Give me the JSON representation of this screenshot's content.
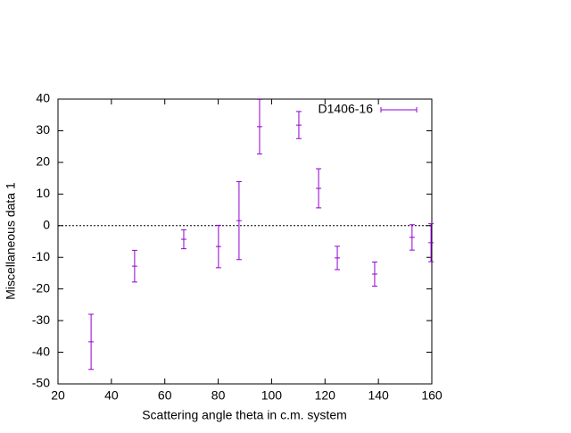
{
  "chart_data": {
    "type": "errorbar",
    "xlabel": "Scattering angle theta in c.m. system",
    "ylabel": "Miscellaneous data 1",
    "x": [
      32.4,
      48.7,
      67.1,
      80.1,
      87.8,
      95.5,
      110.2,
      117.6,
      124.6,
      138.6,
      152.6,
      159.7
    ],
    "series": [
      {
        "name": "D1406-16",
        "color": "#9400d3",
        "values": [
          -36.7,
          -12.8,
          -4.3,
          -6.6,
          1.6,
          31.3,
          31.8,
          11.8,
          -10.2,
          -15.3,
          -3.7,
          -5.4
        ],
        "errors": [
          8.7,
          5.0,
          3.0,
          6.7,
          12.3,
          8.6,
          4.3,
          6.2,
          3.7,
          3.8,
          4.0,
          6.0
        ]
      }
    ],
    "xlim": [
      20,
      160
    ],
    "xticks": [
      20,
      40,
      60,
      80,
      100,
      120,
      140,
      160
    ],
    "ylim": [
      -50,
      40
    ],
    "yticks": [
      -50,
      -40,
      -30,
      -20,
      -10,
      0,
      10,
      20,
      30,
      40
    ],
    "zero_line": true,
    "legend": "top-right"
  }
}
